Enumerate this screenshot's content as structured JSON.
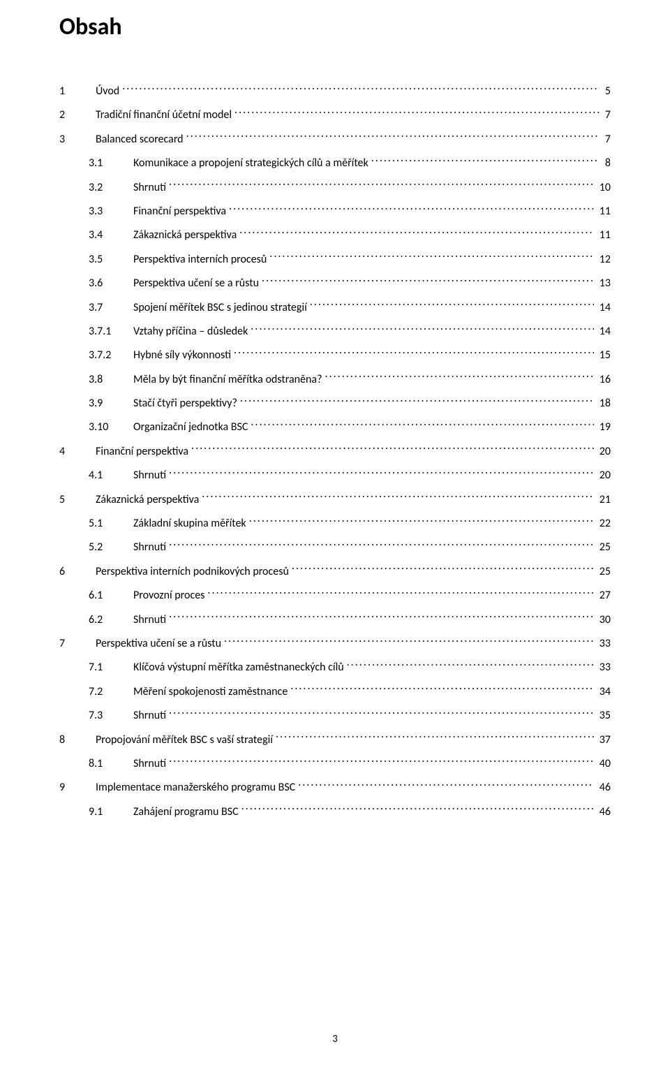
{
  "title": "Obsah",
  "page_number": "3",
  "colors": {
    "text": "#000000",
    "background": "#ffffff"
  },
  "font": {
    "title_size_pt": 26,
    "body_size_pt": 12,
    "weight_title": 700,
    "weight_body": 400
  },
  "entries": [
    {
      "level": 1,
      "num": "1",
      "label": "Úvod",
      "page": "5"
    },
    {
      "level": 1,
      "num": "2",
      "label": "Tradiční finanční účetní model",
      "page": "7"
    },
    {
      "level": 1,
      "num": "3",
      "label": "Balanced scorecard",
      "page": "7"
    },
    {
      "level": 2,
      "num": "3.1",
      "label": "Komunikace a propojení strategických cílů a měřítek",
      "page": "8"
    },
    {
      "level": 2,
      "num": "3.2",
      "label": "Shrnutí",
      "page": "10"
    },
    {
      "level": 2,
      "num": "3.3",
      "label": "Finanční perspektiva",
      "page": "11"
    },
    {
      "level": 2,
      "num": "3.4",
      "label": "Zákaznická perspektiva",
      "page": "11"
    },
    {
      "level": 2,
      "num": "3.5",
      "label": "Perspektiva interních procesů",
      "page": "12"
    },
    {
      "level": 2,
      "num": "3.6",
      "label": "Perspektiva učení se a růstu",
      "page": "13"
    },
    {
      "level": 2,
      "num": "3.7",
      "label": "Spojení měřítek BSC s jedinou strategií",
      "page": "14"
    },
    {
      "level": 3,
      "num": "3.7.1",
      "label": "Vztahy příčina – důsledek",
      "page": "14"
    },
    {
      "level": 3,
      "num": "3.7.2",
      "label": "Hybné síly výkonnosti",
      "page": "15"
    },
    {
      "level": 2,
      "num": "3.8",
      "label": "Měla by být finanční měřítka odstraněna?",
      "page": "16"
    },
    {
      "level": 2,
      "num": "3.9",
      "label": "Stačí čtyři perspektivy?",
      "page": "18"
    },
    {
      "level": 2,
      "num": "3.10",
      "label": "Organizační jednotka BSC",
      "page": "19"
    },
    {
      "level": 1,
      "num": "4",
      "label": "Finanční perspektiva",
      "page": "20"
    },
    {
      "level": 2,
      "num": "4.1",
      "label": "Shrnutí",
      "page": "20"
    },
    {
      "level": 1,
      "num": "5",
      "label": "Zákaznická perspektiva",
      "page": "21"
    },
    {
      "level": 2,
      "num": "5.1",
      "label": "Základní skupina měřítek",
      "page": "22"
    },
    {
      "level": 2,
      "num": "5.2",
      "label": "Shrnutí",
      "page": "25"
    },
    {
      "level": 1,
      "num": "6",
      "label": "Perspektiva interních podnikových procesů",
      "page": "25"
    },
    {
      "level": 2,
      "num": "6.1",
      "label": "Provozní proces",
      "page": "27"
    },
    {
      "level": 2,
      "num": "6.2",
      "label": "Shrnutí",
      "page": "30"
    },
    {
      "level": 1,
      "num": "7",
      "label": "Perspektiva učení se a růstu",
      "page": "33"
    },
    {
      "level": 2,
      "num": "7.1",
      "label": "Klíčová výstupní měřítka zaměstnaneckých cílů",
      "page": "33"
    },
    {
      "level": 2,
      "num": "7.2",
      "label": "Měření spokojenosti zaměstnance",
      "page": "34"
    },
    {
      "level": 2,
      "num": "7.3",
      "label": "Shrnutí",
      "page": "35"
    },
    {
      "level": 1,
      "num": "8",
      "label": "Propojování měřítek BSC s vaší strategií",
      "page": "37"
    },
    {
      "level": 2,
      "num": "8.1",
      "label": "Shrnutí",
      "page": "40"
    },
    {
      "level": 1,
      "num": "9",
      "label": "Implementace manažerského programu BSC",
      "page": "46"
    },
    {
      "level": 2,
      "num": "9.1",
      "label": "Zahájení programu BSC",
      "page": "46"
    }
  ]
}
